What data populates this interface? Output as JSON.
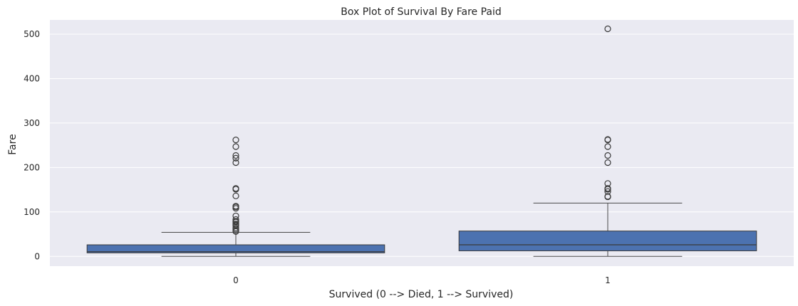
{
  "chart_data": {
    "type": "box",
    "title": "Box Plot of Survival By Fare Paid",
    "xlabel": "Survived (0 --> Died, 1 --> Survived)",
    "ylabel": "Fare",
    "ylim": [
      -22,
      532
    ],
    "yticks": [
      0,
      100,
      200,
      300,
      400,
      500
    ],
    "grid": true,
    "background_color": "#eaeaf2",
    "box_color": "#4c72b0",
    "categories": [
      "0",
      "1"
    ],
    "boxes": [
      {
        "category": "0",
        "whisker_low": 0,
        "q1": 7.9,
        "median": 10.5,
        "q3": 26,
        "whisker_high": 54,
        "fliers": [
          262,
          247,
          227,
          221,
          211,
          153,
          151,
          136,
          113,
          111,
          108,
          91,
          83,
          79,
          78,
          77,
          73,
          71,
          69,
          64,
          61,
          57,
          56
        ]
      },
      {
        "category": "1",
        "whisker_low": 0,
        "q1": 12.5,
        "median": 26,
        "q3": 57,
        "whisker_high": 120,
        "fliers": [
          512,
          263,
          262,
          247,
          227,
          211,
          164,
          153,
          151,
          146,
          135,
          134
        ]
      }
    ]
  }
}
